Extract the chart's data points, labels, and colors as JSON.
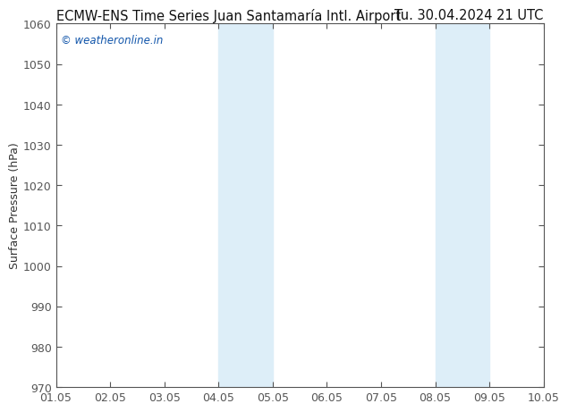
{
  "title_left": "ECMW-ENS Time Series Juan Santamaría Intl. Airport",
  "title_right": "Tu. 30.04.2024 21 UTC",
  "ylabel": "Surface Pressure (hPa)",
  "xlabel_ticks": [
    "01.05",
    "02.05",
    "03.05",
    "04.05",
    "05.05",
    "06.05",
    "07.05",
    "08.05",
    "09.05",
    "10.05"
  ],
  "ylim": [
    970,
    1060
  ],
  "xlim": [
    0,
    9
  ],
  "yticks": [
    970,
    980,
    990,
    1000,
    1010,
    1020,
    1030,
    1040,
    1050,
    1060
  ],
  "shaded_bands": [
    {
      "x_start": 3,
      "x_end": 4,
      "color": "#ddeef8"
    },
    {
      "x_start": 7,
      "x_end": 8,
      "color": "#ddeef8"
    }
  ],
  "watermark_text": "© weatheronline.in",
  "watermark_color": "#1155aa",
  "background_color": "#ffffff",
  "plot_bg_color": "#ffffff",
  "tick_label_fontsize": 9,
  "title_fontsize": 10.5,
  "ylabel_fontsize": 9,
  "spine_color": "#555555",
  "tick_color": "#555555"
}
